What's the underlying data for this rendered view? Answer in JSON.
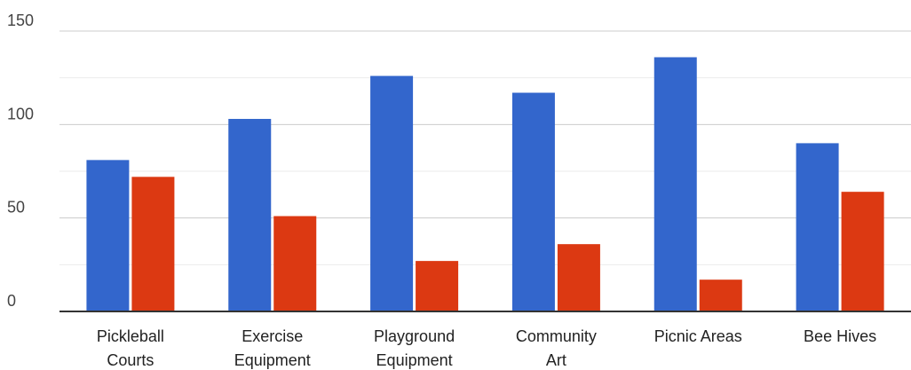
{
  "chart_data": {
    "type": "bar",
    "title": "",
    "xlabel": "",
    "ylabel": "",
    "ylim": [
      0,
      150
    ],
    "yticks": [
      0,
      50,
      100,
      150
    ],
    "minor_grid_step": 25,
    "grid": true,
    "legend": "none",
    "categories": [
      [
        "Pickleball",
        "Courts"
      ],
      [
        "Exercise",
        "Equipment"
      ],
      [
        "Playground",
        "Equipment"
      ],
      [
        "Community",
        "Art"
      ],
      [
        "Picnic Areas"
      ],
      [
        "Bee Hives"
      ]
    ],
    "series": [
      {
        "color": "#3366cc",
        "values": [
          81,
          103,
          126,
          117,
          136,
          90
        ]
      },
      {
        "color": "#dc3912",
        "values": [
          72,
          51,
          27,
          36,
          17,
          64
        ]
      }
    ]
  }
}
